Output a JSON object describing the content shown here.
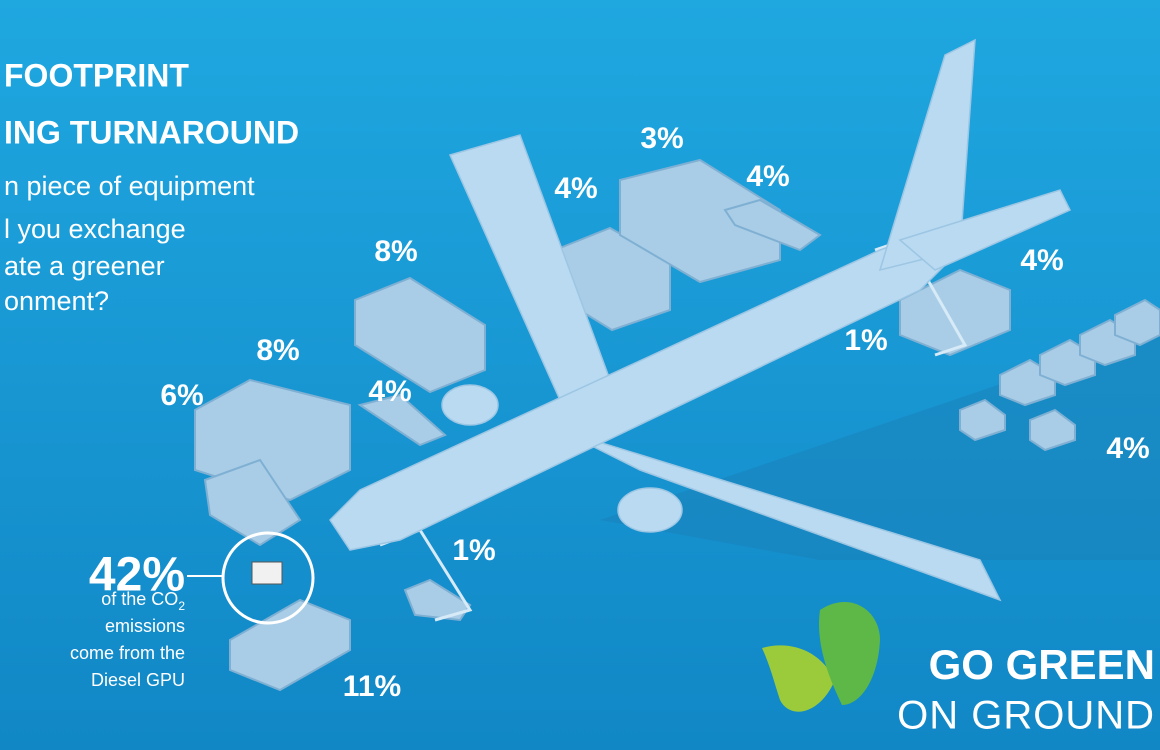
{
  "header": {
    "title_lines": [
      "FOOTPRINT",
      "ING TURNAROUND"
    ],
    "subtitle_lines": [
      "n piece of equipment",
      "l you exchange",
      "ate a greener",
      "onment?"
    ]
  },
  "labels": [
    "3%",
    "4%",
    "4%",
    "8%",
    "4%",
    "8%",
    "1%",
    "4%",
    "6%",
    "4%",
    "1%",
    "11%"
  ],
  "callout": {
    "value": "42%",
    "caption_start": "of the CO",
    "caption_sub": "2",
    "caption_lines": [
      "emissions",
      "come from the",
      "Diesel GPU"
    ]
  },
  "logo": {
    "line1": "GO GREEN",
    "line2": "ON GROUND"
  }
}
